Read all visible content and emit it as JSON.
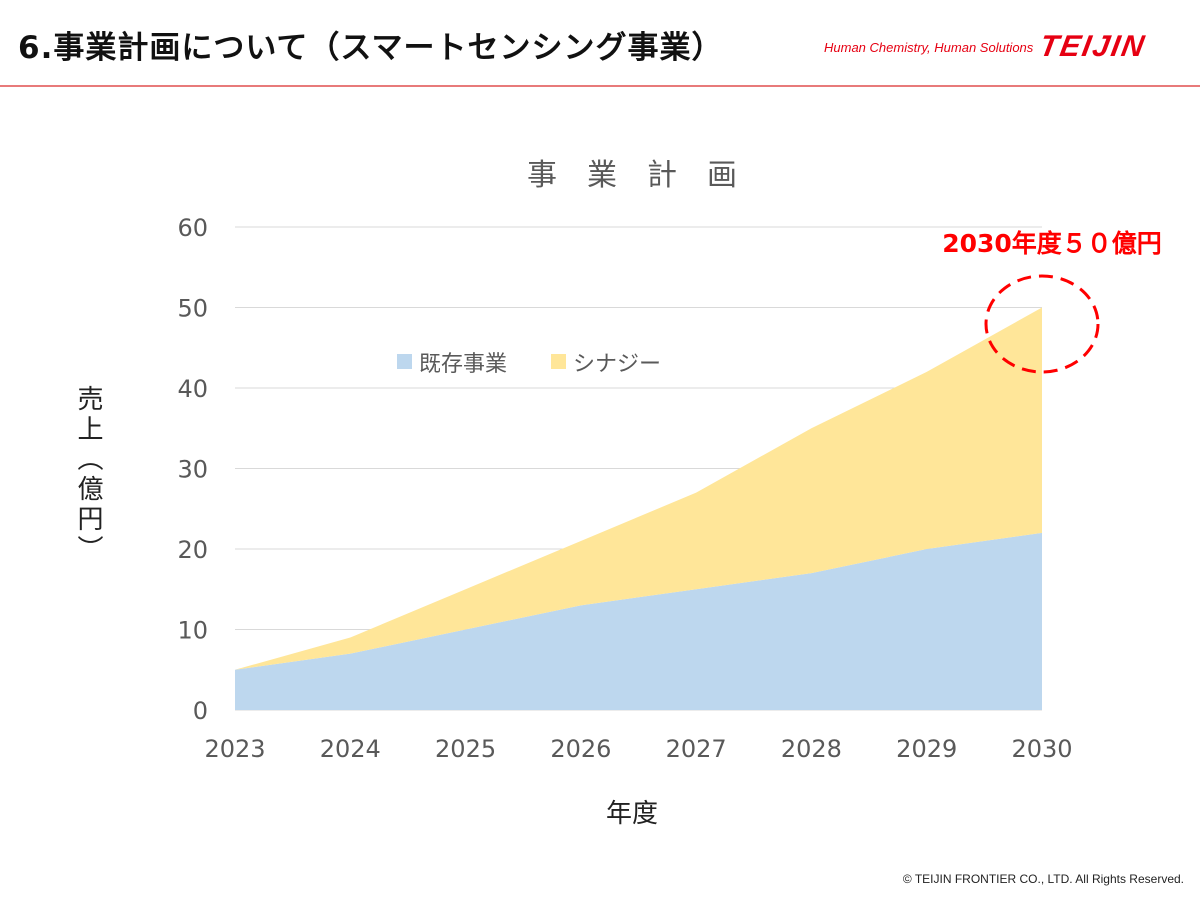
{
  "header": {
    "title": "6.事業計画について（スマートセンシング事業）",
    "tagline": "Human Chemistry, Human Solutions",
    "logo": "TEIJIN"
  },
  "footer": {
    "copyright": "© TEIJIN FRONTIER CO., LTD. All Rights Reserved."
  },
  "chart_data": {
    "type": "area",
    "stacked": true,
    "title": "事　業　計　画",
    "xlabel": "年度",
    "ylabel": "売上（億円）",
    "categories": [
      "2023",
      "2024",
      "2025",
      "2026",
      "2027",
      "2028",
      "2029",
      "2030"
    ],
    "series": [
      {
        "name": "既存事業",
        "color": "#bdd7ee",
        "values": [
          5,
          7,
          10,
          13,
          15,
          17,
          20,
          22
        ]
      },
      {
        "name": "シナジー",
        "color": "#ffe699",
        "values": [
          0,
          2,
          5,
          8,
          12,
          18,
          22,
          28
        ]
      }
    ],
    "ylim": [
      0,
      60
    ],
    "yticks": [
      "0",
      "10",
      "20",
      "30",
      "40",
      "50",
      "60"
    ],
    "grid": true,
    "legend": "top-center",
    "annotation": {
      "text": "2030年度５０億円",
      "color": "#ff0000"
    }
  }
}
